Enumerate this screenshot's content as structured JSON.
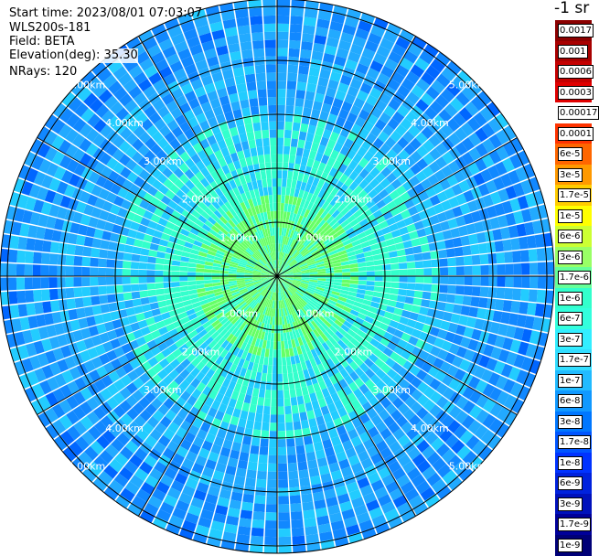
{
  "header": {
    "start_time": "Start time: 2023/08/01 07:03:07",
    "device": "WLS200s-181",
    "field": "Field: BETA",
    "elevation": "Elevation(deg): 35.30",
    "nrays": "NRays: 120"
  },
  "colorbar": {
    "unit": "-1 sr",
    "labels": [
      "0.0017",
      "0.001",
      "0.0006",
      "0.0003",
      "0.00017",
      "0.0001",
      "6e-5",
      "3e-5",
      "1.7e-5",
      "1e-5",
      "6e-6",
      "3e-6",
      "1.7e-6",
      "1e-6",
      "6e-7",
      "3e-7",
      "1.7e-7",
      "1e-7",
      "6e-8",
      "3e-8",
      "1.7e-8",
      "1e-8",
      "6e-9",
      "3e-9",
      "1.7e-9",
      "1e-9"
    ],
    "colors": [
      "#8b0000",
      "#a80000",
      "#c40000",
      "#e00000",
      "#ffffff",
      "#ff3300",
      "#ff6600",
      "#ff9900",
      "#ffcc00",
      "#ffff00",
      "#ccff33",
      "#99ff66",
      "#66ff99",
      "#33ffcc",
      "#33ffdd",
      "#33eeff",
      "#33ddff",
      "#22bbff",
      "#1199ff",
      "#0077ff",
      "#0055ff",
      "#0033ff",
      "#0022dd",
      "#0011bb",
      "#000099",
      "#000077"
    ]
  },
  "ppi": {
    "rings_km": [
      1,
      2,
      3,
      4,
      5
    ],
    "ring_labels": [
      "1.00km",
      "2.00km",
      "3.00km",
      "4.00km",
      "5.00km"
    ],
    "n_rays": 120,
    "colors": {
      "near": "#66ff66",
      "mid": "#33ffcc",
      "cyan": "#22ccff",
      "sky": "#22aaff",
      "blue": "#1188ff",
      "deep": "#0066ff"
    }
  }
}
